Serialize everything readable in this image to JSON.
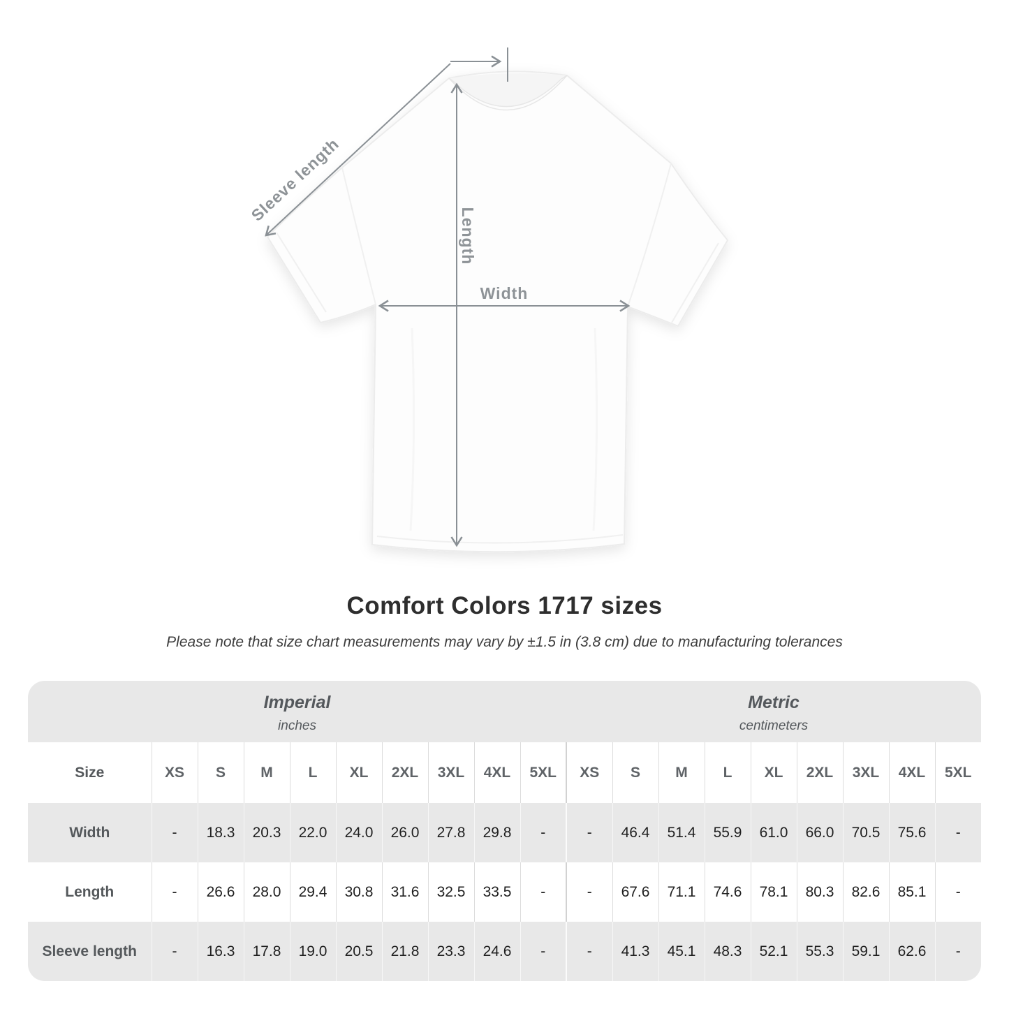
{
  "title": "Comfort Colors 1717 sizes",
  "subtitle": "Please note that size chart measurements may vary by ±1.5 in (3.8 cm) due to manufacturing tolerances",
  "diagram": {
    "sleeve_length_label": "Sleeve length",
    "length_label": "Length",
    "width_label": "Width"
  },
  "colors": {
    "row_gray": "#e8e8e8",
    "measure_line": "#8a9095",
    "number_text": "#1f1f1f",
    "header_text": "#54585c"
  },
  "chart_data": {
    "type": "table",
    "title": "Comfort Colors 1717 sizes",
    "groups": [
      {
        "name": "Imperial",
        "unit": "inches"
      },
      {
        "name": "Metric",
        "unit": "centimeters"
      }
    ],
    "size_header_label": "Size",
    "sizes": [
      "XS",
      "S",
      "M",
      "L",
      "XL",
      "2XL",
      "3XL",
      "4XL",
      "5XL"
    ],
    "rows": [
      {
        "label": "Width",
        "imperial": [
          "-",
          "18.3",
          "20.3",
          "22.0",
          "24.0",
          "26.0",
          "27.8",
          "29.8",
          "-"
        ],
        "metric": [
          "-",
          "46.4",
          "51.4",
          "55.9",
          "61.0",
          "66.0",
          "70.5",
          "75.6",
          "-"
        ]
      },
      {
        "label": "Length",
        "imperial": [
          "-",
          "26.6",
          "28.0",
          "29.4",
          "30.8",
          "31.6",
          "32.5",
          "33.5",
          "-"
        ],
        "metric": [
          "-",
          "67.6",
          "71.1",
          "74.6",
          "78.1",
          "80.3",
          "82.6",
          "85.1",
          "-"
        ]
      },
      {
        "label": "Sleeve length",
        "imperial": [
          "-",
          "16.3",
          "17.8",
          "19.0",
          "20.5",
          "21.8",
          "23.3",
          "24.6",
          "-"
        ],
        "metric": [
          "-",
          "41.3",
          "45.1",
          "48.3",
          "52.1",
          "55.3",
          "59.1",
          "62.6",
          "-"
        ]
      }
    ]
  }
}
